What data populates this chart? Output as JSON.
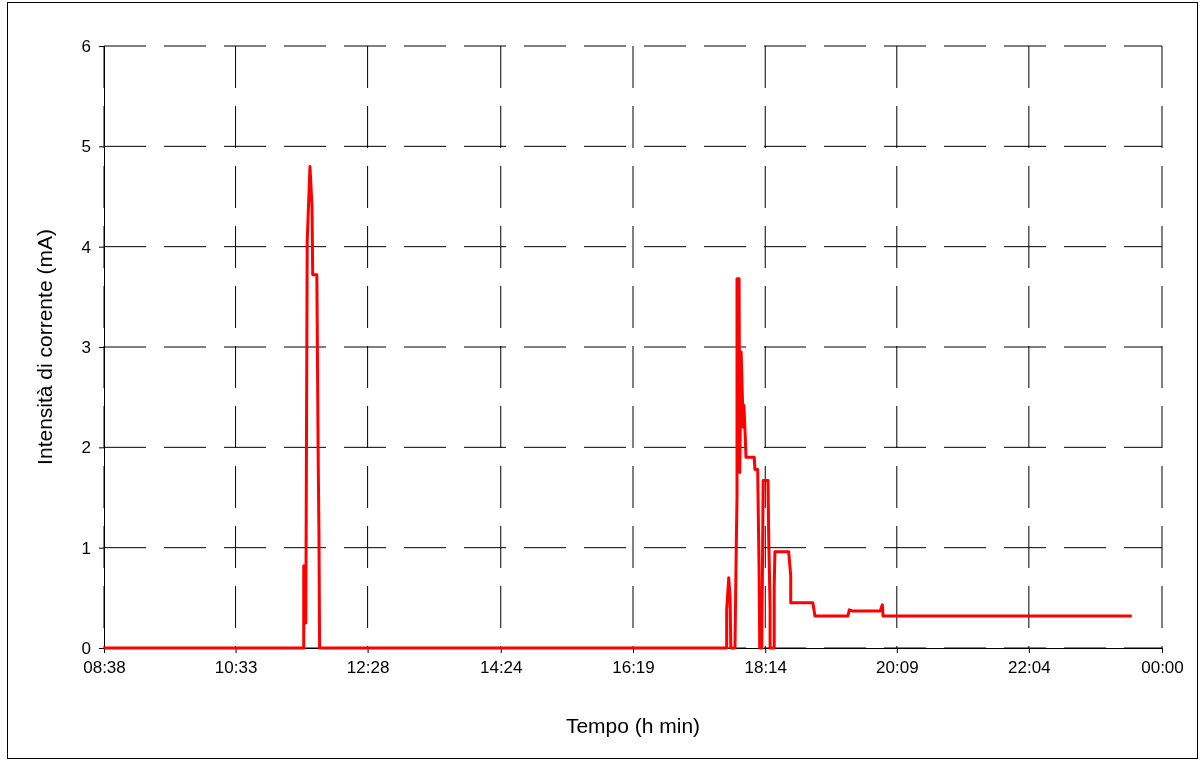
{
  "chart_data": {
    "type": "line",
    "xlabel": "Tempo (h min)",
    "ylabel": "Intensità di corrente (mA)",
    "xlim": [
      8.64,
      24
    ],
    "ylim": [
      0,
      6
    ],
    "xticks": [
      {
        "value": 8.64,
        "label": "08:38"
      },
      {
        "value": 10.55,
        "label": "10:33"
      },
      {
        "value": 12.467,
        "label": "12:28"
      },
      {
        "value": 14.4,
        "label": "14:24"
      },
      {
        "value": 16.32,
        "label": "16:19"
      },
      {
        "value": 18.24,
        "label": "18:14"
      },
      {
        "value": 20.15,
        "label": "20:09"
      },
      {
        "value": 22.067,
        "label": "22:04"
      },
      {
        "value": 24,
        "label": "00:00"
      }
    ],
    "yticks": [
      0,
      1,
      2,
      3,
      4,
      5,
      6
    ],
    "grid": true,
    "line_style": "solid",
    "marker": "none",
    "series": [
      {
        "color": "#ff0000",
        "x": [
          8.64,
          11.54,
          11.54,
          11.57,
          11.59,
          11.63,
          11.66,
          11.67,
          11.73,
          11.75,
          11.76,
          11.77,
          17.68,
          17.68,
          17.71,
          17.73,
          17.74,
          17.8,
          17.82,
          17.83,
          17.83,
          17.86,
          17.87,
          17.89,
          17.92,
          17.93,
          17.95,
          17.96,
          18.08,
          18.09,
          18.13,
          18.15,
          18.16,
          18.19,
          18.21,
          18.28,
          18.29,
          18.31,
          18.31,
          18.37,
          18.37,
          18.38,
          18.58,
          18.61,
          18.61,
          18.93,
          18.95,
          18.96,
          19.44,
          19.46,
          19.5,
          19.91,
          19.94,
          19.95,
          23.56
        ],
        "values": [
          0,
          0,
          0.82,
          0.25,
          4.05,
          4.8,
          4.4,
          3.72,
          3.72,
          1.85,
          1.2,
          0,
          0,
          0.38,
          0.7,
          0.5,
          0,
          0,
          1.05,
          1.5,
          3.68,
          3.68,
          1.75,
          2.95,
          2.2,
          2.42,
          2.1,
          1.9,
          1.9,
          1.78,
          1.78,
          0.8,
          0,
          0,
          1.67,
          1.67,
          1.12,
          0.4,
          0,
          0,
          0.6,
          0.96,
          0.96,
          0.72,
          0.45,
          0.45,
          0.37,
          0.32,
          0.32,
          0.38,
          0.37,
          0.37,
          0.43,
          0.32,
          0.32
        ]
      }
    ]
  }
}
